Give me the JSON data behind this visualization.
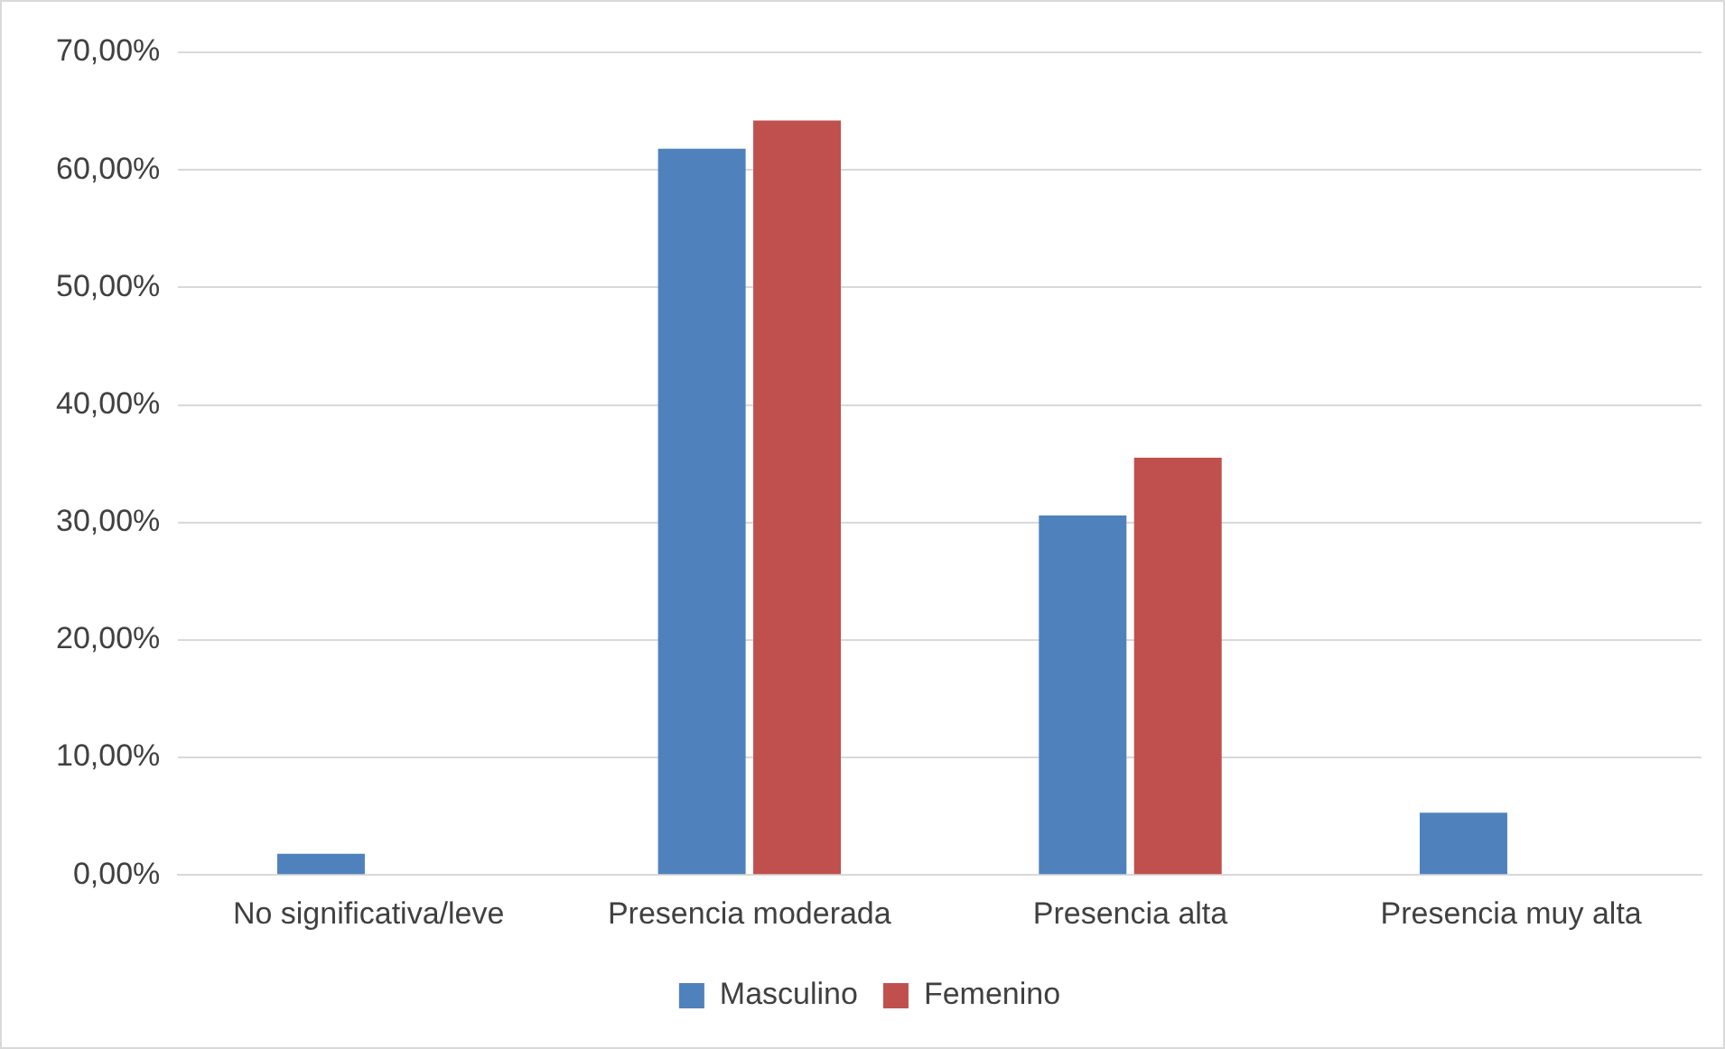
{
  "chart_data": {
    "type": "bar",
    "categories": [
      "No significativa/leve",
      "Presencia moderada",
      "Presencia alta",
      "Presencia muy alta"
    ],
    "series": [
      {
        "name": "Masculino",
        "color": "#4f81bd",
        "values": [
          1.8,
          61.8,
          30.6,
          5.3
        ]
      },
      {
        "name": "Femenino",
        "color": "#c0504d",
        "values": [
          0,
          64.2,
          35.5,
          0
        ]
      }
    ],
    "ylim": [
      0,
      70
    ],
    "yticks": [
      {
        "value": 0,
        "label": "0,00%"
      },
      {
        "value": 10,
        "label": "10,00%"
      },
      {
        "value": 20,
        "label": "20,00%"
      },
      {
        "value": 30,
        "label": "30,00%"
      },
      {
        "value": 40,
        "label": "40,00%"
      },
      {
        "value": 50,
        "label": "50,00%"
      },
      {
        "value": 60,
        "label": "60,00%"
      },
      {
        "value": 70,
        "label": "70,00%"
      }
    ],
    "grid": "y",
    "legend": "bottom"
  }
}
